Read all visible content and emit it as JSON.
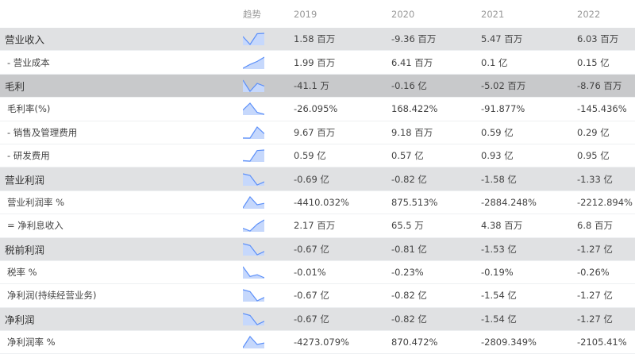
{
  "header": {
    "trend_label": "趋势",
    "years": [
      "2019",
      "2020",
      "2021",
      "2022"
    ]
  },
  "colors": {
    "highlight_row": "#e0e1e3",
    "gross_profit_row": "#c8c9cb",
    "sparkline_line": "#5b8ff9",
    "sparkline_fill": "#c6d8fc"
  },
  "rows": [
    {
      "label": "营业收入",
      "type": "highlight",
      "values": [
        "1.58 百万",
        "-9.36 百万",
        "5.47 百万",
        "6.03 百万"
      ]
    },
    {
      "label": "- 营业成本",
      "type": "sub",
      "values": [
        "1.99 百万",
        "6.41 百万",
        "0.1 亿",
        "0.15 亿"
      ]
    },
    {
      "label": "毛利",
      "type": "dark",
      "values": [
        "-41.1 万",
        "-0.16 亿",
        "-5.02 百万",
        "-8.76 百万"
      ]
    },
    {
      "label": "毛利率(%)",
      "type": "sub",
      "values": [
        "-26.095%",
        "168.422%",
        "-91.877%",
        "-145.436%"
      ]
    },
    {
      "label": "- 销售及管理费用",
      "type": "sub",
      "values": [
        "9.67 百万",
        "9.18 百万",
        "0.59 亿",
        "0.29 亿"
      ]
    },
    {
      "label": "- 研发费用",
      "type": "sub",
      "values": [
        "0.59 亿",
        "0.57 亿",
        "0.93 亿",
        "0.95 亿"
      ]
    },
    {
      "label": "营业利润",
      "type": "highlight",
      "values": [
        "-0.69 亿",
        "-0.82 亿",
        "-1.58 亿",
        "-1.33 亿"
      ]
    },
    {
      "label": "营业利润率 %",
      "type": "sub",
      "values": [
        "-4410.032%",
        "875.513%",
        "-2884.248%",
        "-2212.894%"
      ]
    },
    {
      "label": "= 净利息收入",
      "type": "sub",
      "values": [
        "2.17 百万",
        "65.5 万",
        "4.38 百万",
        "6.8 百万"
      ]
    },
    {
      "label": "税前利润",
      "type": "highlight",
      "values": [
        "-0.67 亿",
        "-0.81 亿",
        "-1.53 亿",
        "-1.27 亿"
      ]
    },
    {
      "label": "税率 %",
      "type": "sub",
      "values": [
        "-0.01%",
        "-0.23%",
        "-0.19%",
        "-0.26%"
      ]
    },
    {
      "label": "净利润(持续经营业务)",
      "type": "sub",
      "values": [
        "-0.67 亿",
        "-0.82 亿",
        "-1.54 亿",
        "-1.27 亿"
      ]
    },
    {
      "label": "净利润",
      "type": "highlight",
      "values": [
        "-0.67 亿",
        "-0.82 亿",
        "-1.54 亿",
        "-1.27 亿"
      ]
    },
    {
      "label": "净利润率 %",
      "type": "sub",
      "values": [
        "-4273.079%",
        "870.472%",
        "-2809.349%",
        "-2105.41%"
      ]
    }
  ]
}
